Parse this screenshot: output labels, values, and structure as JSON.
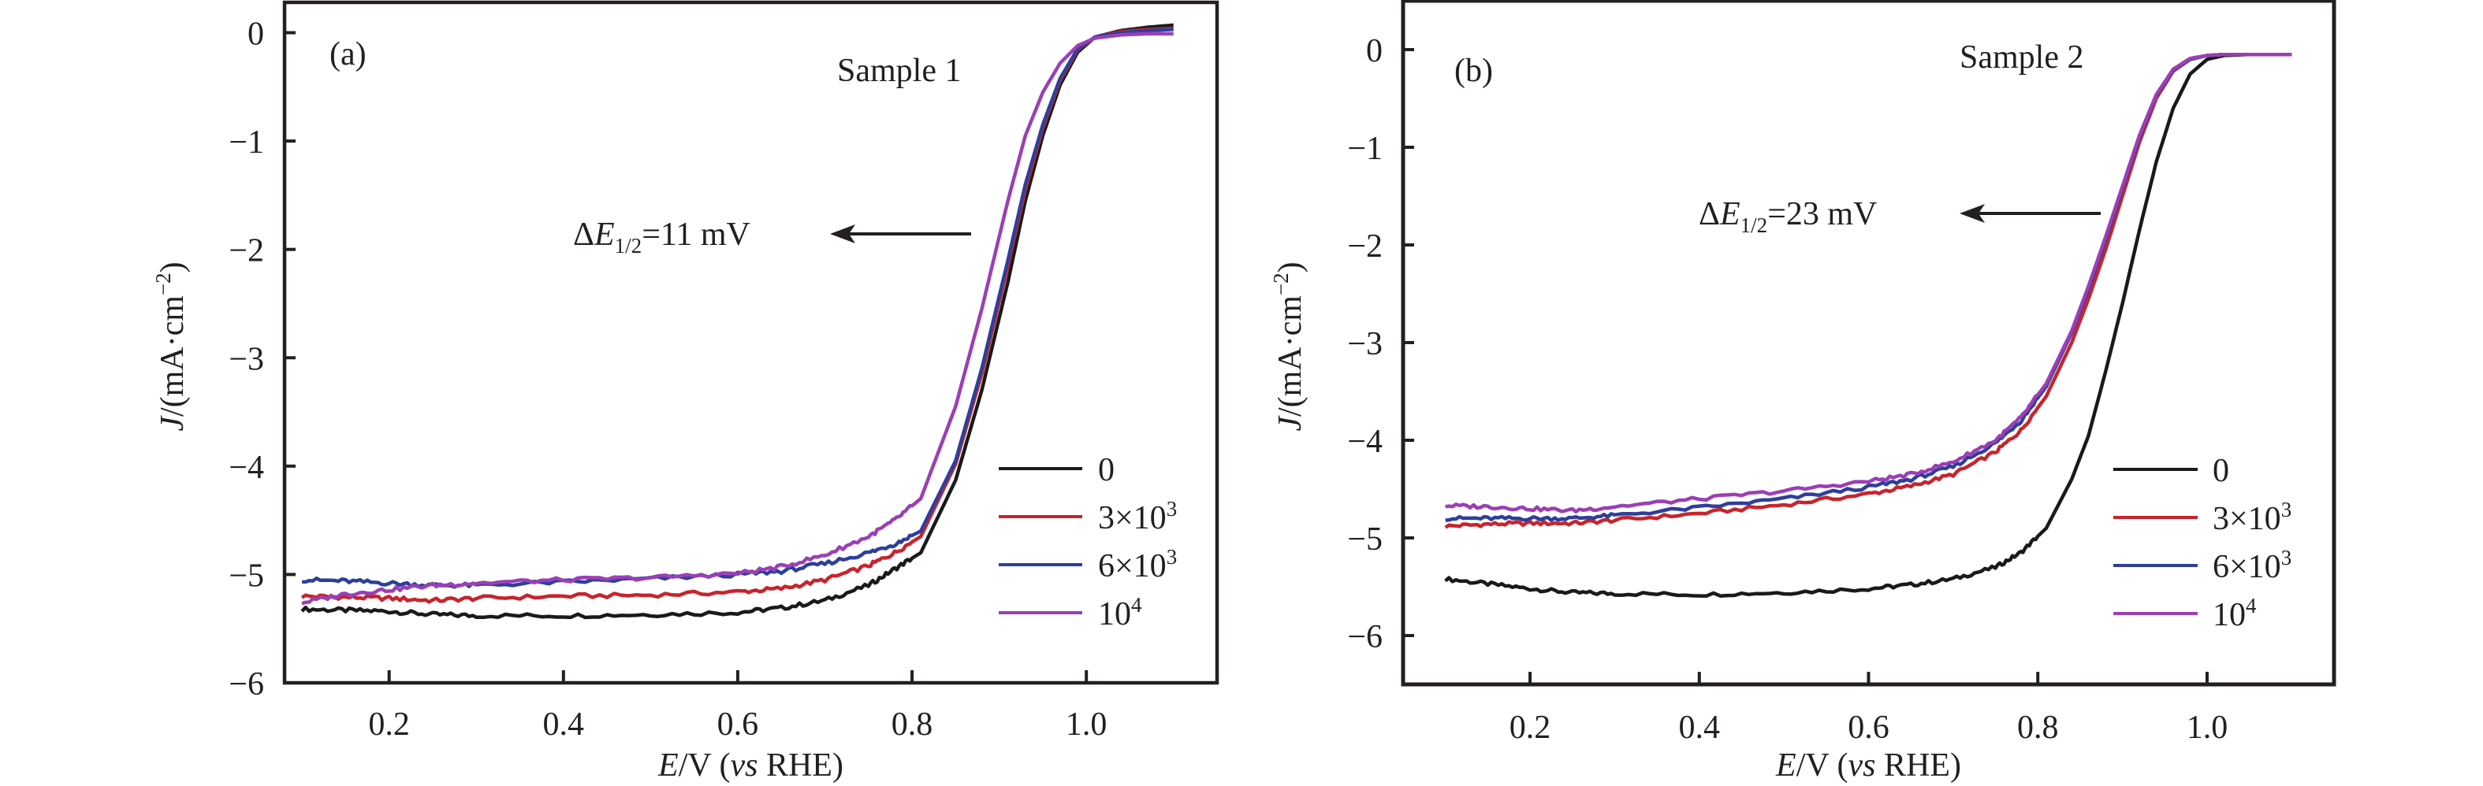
{
  "chart_data": [
    {
      "type": "line",
      "panel_label": "(a)",
      "title": "Sample 1",
      "xlabel": "E/V (vs RHE)",
      "ylabel": "J/(mA·cm−2)",
      "xlim": [
        0.08,
        1.15
      ],
      "ylim": [
        -6,
        0.28
      ],
      "xticks": [
        0.2,
        0.4,
        0.6,
        0.8,
        1.0
      ],
      "xtick_labels": [
        "0.2",
        "0.4",
        "0.6",
        "0.8",
        "1.0"
      ],
      "yticks": [
        0,
        -1,
        -2,
        -3,
        -4,
        -5,
        -6
      ],
      "ytick_labels": [
        "0",
        "−1",
        "−2",
        "−3",
        "−4",
        "−5",
        "−6"
      ],
      "grid": false,
      "legend_position": "lower-right",
      "annotation": {
        "text_prefix": "ΔE",
        "text_sub": "1/2",
        "text_suffix": "=11 mV",
        "arrow_at": [
          0.91,
          -1.58
        ],
        "arrow_direction": "left"
      },
      "series": [
        {
          "name": "0",
          "color": "#1a1a1a",
          "x": [
            0.1,
            0.15,
            0.2,
            0.25,
            0.3,
            0.4,
            0.5,
            0.6,
            0.65,
            0.7,
            0.75,
            0.78,
            0.81,
            0.85,
            0.88,
            0.91,
            0.93,
            0.95,
            0.97,
            0.99,
            1.01,
            1.04,
            1.07,
            1.1
          ],
          "y": [
            -5.32,
            -5.33,
            -5.34,
            -5.37,
            -5.38,
            -5.38,
            -5.37,
            -5.35,
            -5.31,
            -5.24,
            -5.1,
            -4.95,
            -4.8,
            -4.13,
            -3.3,
            -2.3,
            -1.55,
            -0.95,
            -0.48,
            -0.18,
            -0.04,
            0.02,
            0.05,
            0.07
          ]
        },
        {
          "name": "3×10³",
          "label_base": "3×10",
          "label_sup": "3",
          "color": "#c8242c",
          "x": [
            0.1,
            0.15,
            0.2,
            0.25,
            0.3,
            0.4,
            0.5,
            0.6,
            0.65,
            0.7,
            0.75,
            0.78,
            0.81,
            0.85,
            0.88,
            0.91,
            0.93,
            0.95,
            0.97,
            0.99,
            1.01,
            1.04,
            1.07,
            1.1
          ],
          "y": [
            -5.2,
            -5.21,
            -5.22,
            -5.24,
            -5.22,
            -5.2,
            -5.19,
            -5.16,
            -5.13,
            -5.05,
            -4.92,
            -4.8,
            -4.65,
            -3.98,
            -3.15,
            -2.15,
            -1.45,
            -0.88,
            -0.44,
            -0.16,
            -0.04,
            0.01,
            0.03,
            0.04
          ]
        },
        {
          "name": "6×10³",
          "label_base": "6×10",
          "label_sup": "3",
          "color": "#2e3f9a",
          "x": [
            0.1,
            0.15,
            0.2,
            0.25,
            0.3,
            0.4,
            0.5,
            0.6,
            0.65,
            0.7,
            0.75,
            0.78,
            0.81,
            0.85,
            0.88,
            0.91,
            0.93,
            0.95,
            0.97,
            0.99,
            1.01,
            1.04,
            1.07,
            1.1
          ],
          "y": [
            -5.05,
            -5.06,
            -5.08,
            -5.1,
            -5.1,
            -5.07,
            -5.04,
            -5.0,
            -4.97,
            -4.9,
            -4.8,
            -4.72,
            -4.6,
            -3.95,
            -3.1,
            -2.1,
            -1.4,
            -0.85,
            -0.42,
            -0.15,
            -0.04,
            0.0,
            0.02,
            0.03
          ]
        },
        {
          "name": "10⁴",
          "label_base": "10",
          "label_sup": "4",
          "color": "#9b3fb5",
          "x": [
            0.1,
            0.15,
            0.2,
            0.25,
            0.3,
            0.4,
            0.5,
            0.6,
            0.65,
            0.7,
            0.75,
            0.78,
            0.81,
            0.85,
            0.88,
            0.91,
            0.93,
            0.95,
            0.97,
            0.99,
            1.01,
            1.04,
            1.07,
            1.1
          ],
          "y": [
            -5.26,
            -5.18,
            -5.14,
            -5.1,
            -5.08,
            -5.05,
            -5.03,
            -4.99,
            -4.93,
            -4.82,
            -4.65,
            -4.5,
            -4.3,
            -3.45,
            -2.55,
            -1.55,
            -0.95,
            -0.55,
            -0.28,
            -0.12,
            -0.05,
            -0.02,
            -0.01,
            -0.01
          ]
        }
      ]
    },
    {
      "type": "line",
      "panel_label": "(b)",
      "title": "Sample 2",
      "xlabel": "E/V (vs RHE)",
      "ylabel": "J/(mA·cm−2)",
      "xlim": [
        0.05,
        1.15
      ],
      "ylim": [
        -6.5,
        0.5
      ],
      "xticks": [
        0.2,
        0.4,
        0.6,
        0.8,
        1.0
      ],
      "xtick_labels": [
        "0.2",
        "0.4",
        "0.6",
        "0.8",
        "1.0"
      ],
      "yticks": [
        0,
        -1,
        -2,
        -3,
        -4,
        -5,
        -6
      ],
      "ytick_labels": [
        "0",
        "−1",
        "−2",
        "−3",
        "−4",
        "−5",
        "−6"
      ],
      "grid": false,
      "legend_position": "lower-right",
      "annotation": {
        "text_prefix": "ΔE",
        "text_sub": "1/2",
        "text_suffix": "=23 mV",
        "arrow_at": [
          0.91,
          -1.43
        ],
        "arrow_direction": "left"
      },
      "series": [
        {
          "name": "0",
          "color": "#1a1a1a",
          "x": [
            0.1,
            0.15,
            0.2,
            0.25,
            0.3,
            0.4,
            0.5,
            0.6,
            0.65,
            0.7,
            0.75,
            0.78,
            0.81,
            0.84,
            0.86,
            0.88,
            0.9,
            0.92,
            0.94,
            0.96,
            0.98,
            1.0,
            1.02,
            1.05,
            1.1
          ],
          "y": [
            -5.42,
            -5.47,
            -5.52,
            -5.56,
            -5.57,
            -5.58,
            -5.56,
            -5.52,
            -5.48,
            -5.42,
            -5.3,
            -5.15,
            -4.9,
            -4.4,
            -3.95,
            -3.3,
            -2.6,
            -1.85,
            -1.15,
            -0.6,
            -0.25,
            -0.1,
            -0.06,
            -0.05,
            -0.05
          ]
        },
        {
          "name": "3×10³",
          "label_base": "3×10",
          "label_sup": "3",
          "color": "#c8242c",
          "x": [
            0.1,
            0.15,
            0.2,
            0.25,
            0.3,
            0.4,
            0.5,
            0.6,
            0.65,
            0.7,
            0.75,
            0.78,
            0.81,
            0.84,
            0.86,
            0.88,
            0.9,
            0.92,
            0.94,
            0.96,
            0.98,
            1.0,
            1.02,
            1.05,
            1.1
          ],
          "y": [
            -4.88,
            -4.86,
            -4.85,
            -4.85,
            -4.82,
            -4.75,
            -4.66,
            -4.55,
            -4.47,
            -4.35,
            -4.12,
            -3.9,
            -3.55,
            -3.0,
            -2.55,
            -2.05,
            -1.5,
            -0.95,
            -0.5,
            -0.22,
            -0.1,
            -0.06,
            -0.05,
            -0.05,
            -0.05
          ]
        },
        {
          "name": "6×10³",
          "label_base": "6×10",
          "label_sup": "3",
          "color": "#2e3f9a",
          "x": [
            0.1,
            0.15,
            0.2,
            0.25,
            0.3,
            0.4,
            0.5,
            0.6,
            0.65,
            0.7,
            0.75,
            0.78,
            0.81,
            0.84,
            0.86,
            0.88,
            0.9,
            0.92,
            0.94,
            0.96,
            0.98,
            1.0,
            1.02,
            1.05,
            1.1
          ],
          "y": [
            -4.8,
            -4.8,
            -4.8,
            -4.8,
            -4.77,
            -4.69,
            -4.6,
            -4.48,
            -4.4,
            -4.27,
            -4.03,
            -3.8,
            -3.45,
            -2.9,
            -2.45,
            -1.95,
            -1.42,
            -0.9,
            -0.47,
            -0.21,
            -0.1,
            -0.06,
            -0.05,
            -0.05,
            -0.05
          ]
        },
        {
          "name": "10⁴",
          "label_base": "10",
          "label_sup": "4",
          "color": "#9b3fb5",
          "x": [
            0.1,
            0.15,
            0.2,
            0.25,
            0.3,
            0.4,
            0.5,
            0.6,
            0.65,
            0.7,
            0.75,
            0.78,
            0.81,
            0.84,
            0.86,
            0.88,
            0.9,
            0.92,
            0.94,
            0.96,
            0.98,
            1.0,
            1.02,
            1.05,
            1.1
          ],
          "y": [
            -4.67,
            -4.68,
            -4.7,
            -4.72,
            -4.68,
            -4.6,
            -4.52,
            -4.42,
            -4.35,
            -4.22,
            -4.0,
            -3.77,
            -3.42,
            -2.88,
            -2.42,
            -1.92,
            -1.4,
            -0.88,
            -0.46,
            -0.2,
            -0.09,
            -0.06,
            -0.05,
            -0.05,
            -0.05
          ]
        }
      ]
    }
  ]
}
